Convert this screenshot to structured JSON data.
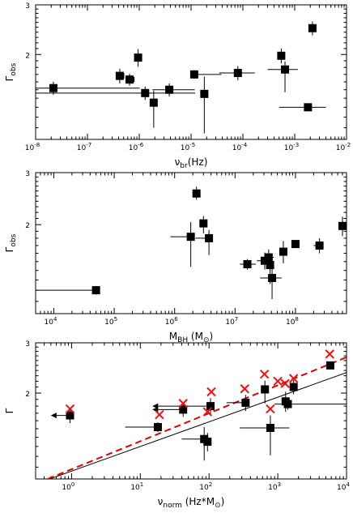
{
  "chart_data": [
    {
      "type": "scatter",
      "panel": "top",
      "xscale": "log",
      "xlim": [
        1e-08,
        0.01
      ],
      "ylim": [
        1.0,
        3.0
      ],
      "x_ticks": [
        {
          "v": 1e-08,
          "base": "10",
          "exp": "-8"
        },
        {
          "v": 1e-07,
          "base": "10",
          "exp": "-7"
        },
        {
          "v": 1e-06,
          "base": "10",
          "exp": "-6"
        },
        {
          "v": 1e-05,
          "base": "10",
          "exp": "-5"
        },
        {
          "v": 0.0001,
          "base": "10",
          "exp": "-4"
        },
        {
          "v": 0.001,
          "base": "10",
          "exp": "-3"
        },
        {
          "v": 0.01,
          "base": "10",
          "exp": "-2"
        }
      ],
      "y_ticks": [
        {
          "v": 2,
          "label": "2"
        },
        {
          "v": 3,
          "label": "3"
        }
      ],
      "xlabel": {
        "main": "ν",
        "sub": "br",
        "rest": "(Hz)"
      },
      "ylabel": {
        "main": "Γ",
        "sub": "obs"
      },
      "points": [
        {
          "x": 2.2e-08,
          "y": 1.52,
          "yerr": [
            0.08,
            0.08
          ],
          "xerr": [
            1.9e-08,
            1e-06
          ],
          "upper_limit": false
        },
        {
          "x": 4.2e-07,
          "y": 1.68,
          "yerr": [
            0.1,
            0.1
          ],
          "xerr": [
            2e-08,
            0
          ],
          "upper_limit": true
        },
        {
          "x": 6.5e-07,
          "y": 1.63,
          "yerr": [
            0.08,
            0.08
          ],
          "xerr": [
            2e-08,
            0
          ],
          "upper_limit": true
        },
        {
          "x": 9.5e-07,
          "y": 1.95,
          "yerr": [
            0.14,
            0.14
          ],
          "xerr": [
            0,
            0
          ],
          "upper_limit": false
        },
        {
          "x": 1.3e-06,
          "y": 1.46,
          "yerr": [
            0.08,
            0.08
          ],
          "xerr": [
            0,
            0
          ],
          "upper_limit": false
        },
        {
          "x": 1.9e-06,
          "y": 1.35,
          "yerr": [
            0.25,
            0.14
          ],
          "xerr": [
            0,
            0
          ],
          "upper_limit": false
        },
        {
          "x": 3.8e-06,
          "y": 1.5,
          "yerr": [
            0.08,
            0.08
          ],
          "xerr": [
            2e-06,
            8e-06
          ],
          "upper_limit": false
        },
        {
          "x": 1.15e-05,
          "y": 1.7,
          "yerr": [
            0.06,
            0.06
          ],
          "xerr": [
            0,
            2.7e-05
          ],
          "upper_limit": false
        },
        {
          "x": 1.8e-05,
          "y": 1.45,
          "yerr": [
            0.4,
            0.22
          ],
          "xerr": [
            0,
            0
          ],
          "upper_limit": false
        },
        {
          "x": 8e-05,
          "y": 1.72,
          "yerr": [
            0.1,
            0.1
          ],
          "xerr": [
            4.5e-05,
            9e-05
          ],
          "upper_limit": false
        },
        {
          "x": 0.00055,
          "y": 1.98,
          "yerr": [
            0.12,
            0.12
          ],
          "xerr": [
            0,
            0
          ],
          "upper_limit": false
        },
        {
          "x": 0.00065,
          "y": 1.77,
          "yerr": [
            0.3,
            0.12
          ],
          "xerr": [
            0.00035,
            0.0005
          ],
          "upper_limit": false
        },
        {
          "x": 0.0018,
          "y": 1.3,
          "yerr": [
            0.04,
            0.04
          ],
          "xerr": [
            0.0013,
            0.0022
          ],
          "upper_limit": false
        },
        {
          "x": 0.0022,
          "y": 2.48,
          "yerr": [
            0.14,
            0.14
          ],
          "xerr": [
            0,
            0
          ],
          "upper_limit": false
        }
      ],
      "horizontal_lines": [
        {
          "x1": 1e-08,
          "x2": 1.2e-05,
          "y": 1.46
        }
      ]
    },
    {
      "type": "scatter",
      "panel": "middle",
      "xscale": "log",
      "xlim": [
        5000,
        700000000
      ],
      "ylim": [
        1.0,
        3.0
      ],
      "x_ticks": [
        {
          "v": 10000.0,
          "base": "10",
          "exp": "4"
        },
        {
          "v": 100000.0,
          "base": "10",
          "exp": "5"
        },
        {
          "v": 1000000.0,
          "base": "10",
          "exp": "6"
        },
        {
          "v": 10000000.0,
          "base": "10",
          "exp": "7"
        },
        {
          "v": 100000000.0,
          "base": "10",
          "exp": "8"
        }
      ],
      "y_ticks": [
        {
          "v": 2,
          "label": "2"
        },
        {
          "v": 3,
          "label": "3"
        }
      ],
      "xlabel": {
        "main": "M",
        "sub": "BH",
        "rest": " (M",
        "sub2": "⊙",
        "rest2": ")"
      },
      "ylabel": {
        "main": "Γ",
        "sub": "obs"
      },
      "points": [
        {
          "x": 50000,
          "y": 1.2,
          "yerr": [
            0.04,
            0.04
          ],
          "xerr": [
            45000,
            0
          ],
          "upper_limit": false
        },
        {
          "x": 1850000.0,
          "y": 1.82,
          "yerr": [
            0.38,
            0.22
          ],
          "xerr": [
            1000000.0,
            0
          ],
          "upper_limit": false
        },
        {
          "x": 2300000.0,
          "y": 2.55,
          "yerr": [
            0.12,
            0.14
          ],
          "xerr": [
            0,
            0
          ],
          "upper_limit": false
        },
        {
          "x": 3000000.0,
          "y": 2.02,
          "yerr": [
            0.15,
            0.12
          ],
          "xerr": [
            0,
            0
          ],
          "upper_limit": false
        },
        {
          "x": 3700000.0,
          "y": 1.8,
          "yerr": [
            0.22,
            0.12
          ],
          "xerr": [
            1500000.0,
            0
          ],
          "upper_limit": false
        },
        {
          "x": 16000000.0,
          "y": 1.47,
          "yerr": [
            0.06,
            0.06
          ],
          "xerr": [
            4000000.0,
            6000000.0
          ],
          "upper_limit": false
        },
        {
          "x": 31000000.0,
          "y": 1.51,
          "yerr": [
            0.1,
            0.1
          ],
          "xerr": [
            8000000.0,
            8000000.0
          ],
          "upper_limit": false
        },
        {
          "x": 36000000.0,
          "y": 1.55,
          "yerr": [
            0.1,
            0.1
          ],
          "xerr": [
            8000000.0,
            8000000.0
          ],
          "upper_limit": false
        },
        {
          "x": 38000000.0,
          "y": 1.46,
          "yerr": [
            0.2,
            0.14
          ],
          "xerr": [
            0,
            0
          ],
          "upper_limit": false
        },
        {
          "x": 41000000.0,
          "y": 1.32,
          "yerr": [
            0.2,
            0.16
          ],
          "xerr": [
            15000000.0,
            18000000.0
          ],
          "upper_limit": false
        },
        {
          "x": 63000000.0,
          "y": 1.62,
          "yerr": [
            0.14,
            0.14
          ],
          "xerr": [
            0,
            0
          ],
          "upper_limit": false
        },
        {
          "x": 100000000.0,
          "y": 1.72,
          "yerr": [
            0.05,
            0.05
          ],
          "xerr": [
            0,
            0
          ],
          "upper_limit": false
        },
        {
          "x": 250000000.0,
          "y": 1.7,
          "yerr": [
            0.1,
            0.1
          ],
          "xerr": [
            50000000.0,
            0
          ],
          "upper_limit": false
        },
        {
          "x": 600000000.0,
          "y": 1.98,
          "yerr": [
            0.15,
            0.15
          ],
          "xerr": [
            0,
            0
          ],
          "upper_limit": false
        }
      ]
    },
    {
      "type": "scatter",
      "panel": "bottom",
      "xscale": "log",
      "xlim": [
        0.3,
        10000
      ],
      "ylim": [
        1.0,
        3.0
      ],
      "x_ticks": [
        {
          "v": 1,
          "base": "10",
          "exp": "0"
        },
        {
          "v": 10,
          "base": "10",
          "exp": "1"
        },
        {
          "v": 100,
          "base": "10",
          "exp": "2"
        },
        {
          "v": 1000,
          "base": "10",
          "exp": "3"
        },
        {
          "v": 10000,
          "base": "10",
          "exp": "4"
        }
      ],
      "y_ticks": [
        {
          "v": 2,
          "label": "2"
        },
        {
          "v": 3,
          "label": "3"
        }
      ],
      "xlabel": {
        "main": "ν",
        "sub": "norm",
        "rest": " (Hz*M",
        "sub2": "⊙",
        "rest2": ")"
      },
      "ylabel": {
        "main": "Γ",
        "sub": ""
      },
      "points": [
        {
          "x": 0.95,
          "y": 1.67,
          "yerr": [
            0.1,
            0.1
          ],
          "xerr": [
            0,
            0
          ],
          "upper_limit": true,
          "arrow_to": 0.5
        },
        {
          "x": 18,
          "y": 1.52,
          "yerr": [
            0.06,
            0.06
          ],
          "xerr": [
            12,
            0
          ],
          "upper_limit": false
        },
        {
          "x": 42,
          "y": 1.75,
          "yerr": [
            0.1,
            0.1
          ],
          "xerr": [
            0,
            0
          ],
          "upper_limit": true,
          "arrow_to": 15
        },
        {
          "x": 85,
          "y": 1.38,
          "yerr": [
            0.22,
            0.14
          ],
          "xerr": [
            45,
            0
          ],
          "upper_limit": false
        },
        {
          "x": 95,
          "y": 1.35,
          "yerr": [
            0.1,
            0.1
          ],
          "xerr": [
            0,
            0
          ],
          "upper_limit": false
        },
        {
          "x": 105,
          "y": 1.8,
          "yerr": [
            0.12,
            0.12
          ],
          "xerr": [
            0,
            0
          ],
          "upper_limit": true,
          "arrow_to": 15
        },
        {
          "x": 340,
          "y": 1.85,
          "yerr": [
            0.12,
            0.12
          ],
          "xerr": [
            160,
            0
          ],
          "upper_limit": false
        },
        {
          "x": 650,
          "y": 2.06,
          "yerr": [
            0.22,
            0.15
          ],
          "xerr": [
            0,
            0
          ],
          "upper_limit": false
        },
        {
          "x": 780,
          "y": 1.51,
          "yerr": [
            0.3,
            0.16
          ],
          "xerr": [
            500,
            700
          ],
          "upper_limit": false
        },
        {
          "x": 1300,
          "y": 1.87,
          "yerr": [
            0.15,
            0.15
          ],
          "xerr": [
            0,
            0
          ],
          "upper_limit": false
        },
        {
          "x": 1400,
          "y": 1.83,
          "yerr": [
            0.08,
            0.08
          ],
          "xerr": [
            500,
            10000
          ],
          "upper_limit": false
        },
        {
          "x": 1700,
          "y": 2.1,
          "yerr": [
            0.12,
            0.12
          ],
          "xerr": [
            0,
            0
          ],
          "upper_limit": false
        },
        {
          "x": 5800,
          "y": 2.5,
          "yerr": [
            0.06,
            0.06
          ],
          "xerr": [
            0,
            0
          ],
          "upper_limit": false
        }
      ],
      "crosses": [
        {
          "x": 0.95,
          "y": 1.76
        },
        {
          "x": 19,
          "y": 1.68
        },
        {
          "x": 42,
          "y": 1.84
        },
        {
          "x": 95,
          "y": 1.72
        },
        {
          "x": 108,
          "y": 2.02
        },
        {
          "x": 330,
          "y": 2.07
        },
        {
          "x": 640,
          "y": 2.33
        },
        {
          "x": 780,
          "y": 1.76
        },
        {
          "x": 1000,
          "y": 2.2
        },
        {
          "x": 1280,
          "y": 2.16
        },
        {
          "x": 1700,
          "y": 2.25
        },
        {
          "x": 5700,
          "y": 2.74
        }
      ],
      "lines": [
        {
          "style": "solid",
          "color": "#000000",
          "x1": 0.3,
          "y1": 0.96,
          "x2": 10000,
          "y2": 2.36
        },
        {
          "style": "dashed",
          "color": "#dd0000",
          "x1": 0.45,
          "y1": 1.0,
          "x2": 10000,
          "y2": 2.67
        }
      ],
      "marker_color_cross": "#ee1111"
    }
  ]
}
